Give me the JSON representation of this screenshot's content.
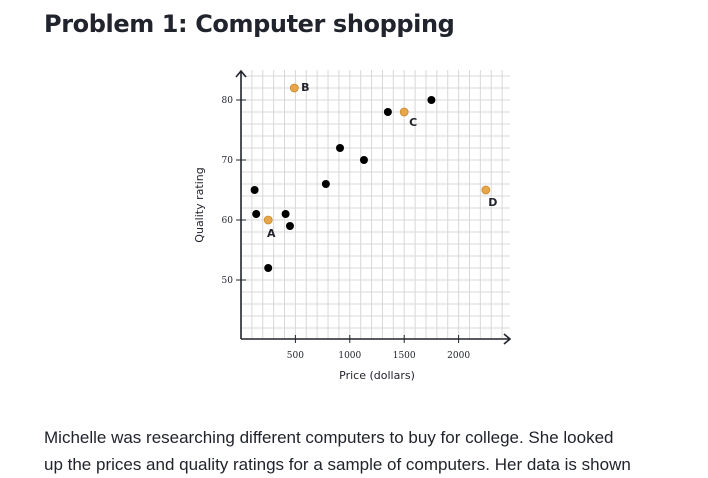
{
  "header": {
    "title": "Problem 1: Computer shopping"
  },
  "paragraph": {
    "line1": "Michelle was researching different computers to buy for college. She looked",
    "line2": "up the prices and quality ratings for a sample of computers. Her data is shown"
  },
  "chart_data": {
    "type": "scatter",
    "xlabel": "Price (dollars)",
    "ylabel": "Quality rating",
    "xlim": [
      0,
      2500
    ],
    "ylim": [
      40,
      85
    ],
    "x_ticks": [
      500,
      1000,
      1500,
      2000
    ],
    "y_ticks": [
      50,
      60,
      70,
      80
    ],
    "grid": true,
    "colors": {
      "default": "#000000",
      "highlight": "#e8a64a"
    },
    "points": [
      {
        "x": 125,
        "y": 65,
        "label": "",
        "highlight": false
      },
      {
        "x": 140,
        "y": 61,
        "label": "",
        "highlight": false
      },
      {
        "x": 250,
        "y": 60,
        "label": "A",
        "highlight": true
      },
      {
        "x": 250,
        "y": 52,
        "label": "",
        "highlight": false
      },
      {
        "x": 410,
        "y": 61,
        "label": "",
        "highlight": false
      },
      {
        "x": 450,
        "y": 59,
        "label": "",
        "highlight": false
      },
      {
        "x": 490,
        "y": 82,
        "label": "B",
        "highlight": true
      },
      {
        "x": 780,
        "y": 66,
        "label": "",
        "highlight": false
      },
      {
        "x": 910,
        "y": 72,
        "label": "",
        "highlight": false
      },
      {
        "x": 1130,
        "y": 70,
        "label": "",
        "highlight": false
      },
      {
        "x": 1350,
        "y": 78,
        "label": "",
        "highlight": false
      },
      {
        "x": 1500,
        "y": 78,
        "label": "C",
        "highlight": true
      },
      {
        "x": 1750,
        "y": 80,
        "label": "",
        "highlight": false
      },
      {
        "x": 2250,
        "y": 65,
        "label": "D",
        "highlight": true
      }
    ]
  }
}
